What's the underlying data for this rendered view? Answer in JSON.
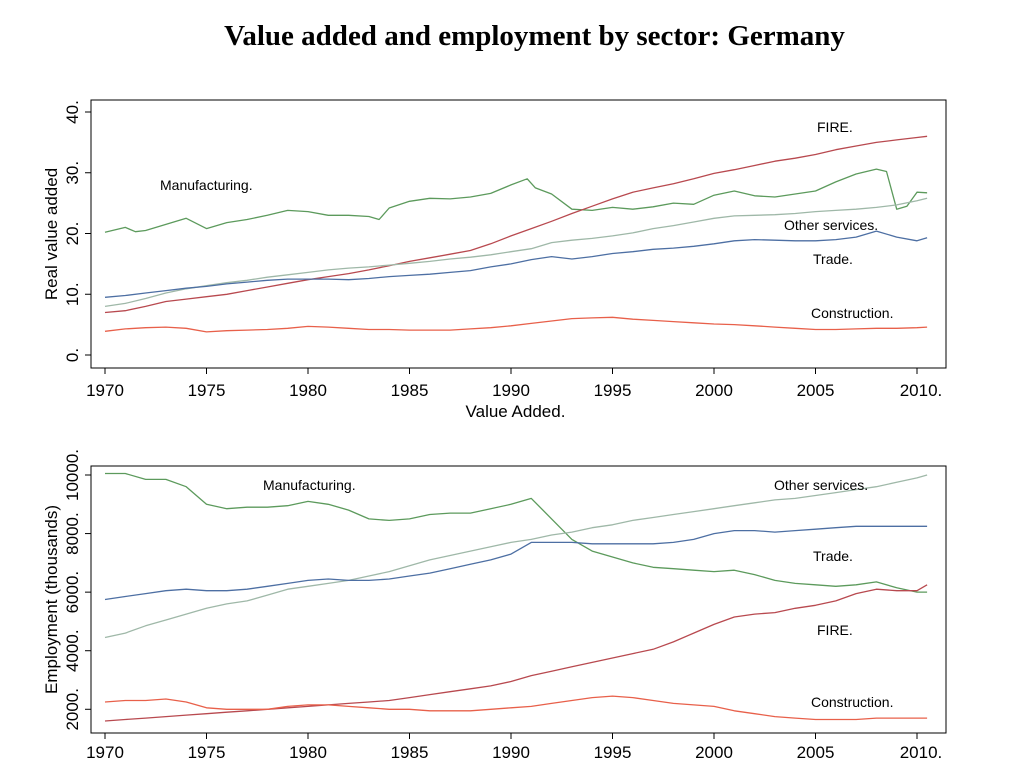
{
  "title": "Value added and employment by sector: Germany",
  "colors": {
    "Manufacturing": "#5c9a5c",
    "FIRE": "#b8494f",
    "Other services": "#9fb8a8",
    "Trade": "#4d6fa3",
    "Construction": "#e8604a"
  },
  "chart_data": [
    {
      "type": "line",
      "title": "",
      "xlabel": "Value Added.",
      "ylabel": "Real value added",
      "xlim": [
        1970,
        2010.5
      ],
      "ylim": [
        0,
        40
      ],
      "xticks": [
        1970,
        1975,
        1980,
        1985,
        1990,
        1995,
        2000,
        2005,
        2010
      ],
      "xtick_labels": [
        "1970",
        "1975",
        "1980",
        "1985",
        "1990",
        "1995",
        "2000",
        "2005",
        "2010."
      ],
      "yticks": [
        0,
        10,
        20,
        30,
        40
      ],
      "ytick_labels": [
        "0.",
        "10.",
        "20.",
        "30.",
        "40."
      ],
      "grid": false,
      "legend": "none (direct labels)",
      "series": [
        {
          "name": "Manufacturing",
          "label": "Manufacturing.",
          "x": [
            1970,
            1971,
            1971.5,
            1972,
            1973,
            1974,
            1975,
            1976,
            1977,
            1978,
            1979,
            1980,
            1981,
            1982,
            1983,
            1983.5,
            1984,
            1985,
            1986,
            1987,
            1988,
            1989,
            1990,
            1990.8,
            1991.2,
            1992,
            1993,
            1994,
            1995,
            1996,
            1997,
            1998,
            1999,
            2000,
            2001,
            2002,
            2003,
            2004,
            2005,
            2006,
            2007,
            2008,
            2008.5,
            2009,
            2009.5,
            2010,
            2010.5
          ],
          "y": [
            20.2,
            21,
            20.3,
            20.5,
            21.5,
            22.5,
            20.8,
            21.8,
            22.3,
            23,
            23.8,
            23.6,
            23,
            23,
            22.8,
            22.3,
            24.2,
            25.3,
            25.8,
            25.7,
            26,
            26.6,
            28,
            29,
            27.5,
            26.5,
            24,
            23.8,
            24.3,
            24,
            24.4,
            25,
            24.8,
            26.3,
            27,
            26.2,
            26,
            26.5,
            27,
            28.5,
            29.8,
            30.6,
            30.2,
            24,
            24.5,
            26.8,
            26.7
          ]
        },
        {
          "name": "FIRE",
          "label": "FIRE.",
          "x": [
            1970,
            1971,
            1972,
            1973,
            1974,
            1975,
            1976,
            1977,
            1978,
            1979,
            1980,
            1981,
            1982,
            1983,
            1984,
            1985,
            1986,
            1987,
            1988,
            1989,
            1990,
            1991,
            1992,
            1993,
            1994,
            1995,
            1996,
            1997,
            1998,
            1999,
            2000,
            2001,
            2002,
            2003,
            2004,
            2005,
            2006,
            2007,
            2008,
            2009,
            2010,
            2010.5
          ],
          "y": [
            7,
            7.3,
            8,
            8.8,
            9.2,
            9.6,
            10,
            10.6,
            11.2,
            11.8,
            12.4,
            12.9,
            13.4,
            14,
            14.7,
            15.4,
            16,
            16.6,
            17.2,
            18.3,
            19.6,
            20.8,
            22,
            23.3,
            24.5,
            25.7,
            26.8,
            27.5,
            28.2,
            29,
            29.9,
            30.5,
            31.2,
            31.9,
            32.4,
            33,
            33.8,
            34.4,
            35,
            35.4,
            35.8,
            36
          ]
        },
        {
          "name": "Other services",
          "label": "Other services.",
          "x": [
            1970,
            1971,
            1972,
            1973,
            1974,
            1975,
            1976,
            1977,
            1978,
            1979,
            1980,
            1981,
            1982,
            1983,
            1984,
            1985,
            1986,
            1987,
            1988,
            1989,
            1990,
            1991,
            1992,
            1993,
            1994,
            1995,
            1996,
            1997,
            1998,
            1999,
            2000,
            2001,
            2002,
            2003,
            2004,
            2005,
            2006,
            2007,
            2008,
            2009,
            2010,
            2010.5
          ],
          "y": [
            8,
            8.5,
            9.3,
            10.2,
            10.9,
            11.4,
            11.9,
            12.3,
            12.8,
            13.2,
            13.6,
            14,
            14.3,
            14.5,
            14.8,
            15.1,
            15.4,
            15.8,
            16.1,
            16.5,
            17,
            17.5,
            18.5,
            18.9,
            19.2,
            19.6,
            20.1,
            20.8,
            21.3,
            21.9,
            22.5,
            22.9,
            23,
            23.1,
            23.3,
            23.6,
            23.8,
            24,
            24.3,
            24.7,
            25.4,
            25.8
          ]
        },
        {
          "name": "Trade",
          "label": "Trade.",
          "x": [
            1970,
            1971,
            1972,
            1973,
            1974,
            1975,
            1976,
            1977,
            1978,
            1979,
            1980,
            1981,
            1982,
            1983,
            1984,
            1985,
            1986,
            1987,
            1988,
            1989,
            1990,
            1991,
            1992,
            1993,
            1994,
            1995,
            1996,
            1997,
            1998,
            1999,
            2000,
            2001,
            2002,
            2003,
            2004,
            2005,
            2006,
            2007,
            2008,
            2009,
            2010,
            2010.5
          ],
          "y": [
            9.5,
            9.8,
            10.2,
            10.6,
            11,
            11.3,
            11.7,
            12,
            12.3,
            12.5,
            12.5,
            12.5,
            12.4,
            12.6,
            12.9,
            13.1,
            13.3,
            13.6,
            13.9,
            14.5,
            15,
            15.7,
            16.2,
            15.8,
            16.2,
            16.7,
            17,
            17.4,
            17.6,
            17.9,
            18.3,
            18.8,
            19,
            18.9,
            18.8,
            18.8,
            19,
            19.4,
            20.4,
            19.4,
            18.8,
            19.3
          ]
        },
        {
          "name": "Construction",
          "label": "Construction.",
          "x": [
            1970,
            1971,
            1972,
            1973,
            1974,
            1975,
            1976,
            1977,
            1978,
            1979,
            1980,
            1981,
            1982,
            1983,
            1984,
            1985,
            1986,
            1987,
            1988,
            1989,
            1990,
            1991,
            1992,
            1993,
            1994,
            1995,
            1996,
            1997,
            1998,
            1999,
            2000,
            2001,
            2002,
            2003,
            2004,
            2005,
            2006,
            2007,
            2008,
            2009,
            2010,
            2010.5
          ],
          "y": [
            3.9,
            4.3,
            4.5,
            4.6,
            4.4,
            3.8,
            4,
            4.1,
            4.2,
            4.4,
            4.7,
            4.6,
            4.4,
            4.2,
            4.2,
            4.1,
            4.1,
            4.1,
            4.3,
            4.5,
            4.8,
            5.2,
            5.6,
            6,
            6.1,
            6.2,
            5.9,
            5.7,
            5.5,
            5.3,
            5.1,
            5,
            4.8,
            4.6,
            4.4,
            4.2,
            4.2,
            4.3,
            4.4,
            4.4,
            4.5,
            4.6
          ]
        }
      ]
    },
    {
      "type": "line",
      "title": "",
      "xlabel": "",
      "ylabel": "Employment (thousands)",
      "xlim": [
        1970,
        2010.5
      ],
      "ylim": [
        1600,
        10300
      ],
      "xticks": [
        1970,
        1975,
        1980,
        1985,
        1990,
        1995,
        2000,
        2005,
        2010
      ],
      "xtick_labels": [
        "1970",
        "1975",
        "1980",
        "1985",
        "1990",
        "1995",
        "2000",
        "2005",
        "2010."
      ],
      "yticks": [
        2000,
        4000,
        6000,
        8000,
        10000
      ],
      "ytick_labels": [
        "2000.",
        "4000.",
        "6000.",
        "8000.",
        "10000."
      ],
      "grid": false,
      "legend": "none (direct labels)",
      "series": [
        {
          "name": "Manufacturing",
          "label": "Manufacturing.",
          "x": [
            1970,
            1971,
            1972,
            1973,
            1974,
            1975,
            1976,
            1977,
            1978,
            1979,
            1980,
            1981,
            1982,
            1983,
            1984,
            1985,
            1986,
            1987,
            1988,
            1989,
            1990,
            1991,
            1992,
            1993,
            1994,
            1995,
            1996,
            1997,
            1998,
            1999,
            2000,
            2001,
            2002,
            2003,
            2004,
            2005,
            2006,
            2007,
            2008,
            2009,
            2010,
            2010.5
          ],
          "y": [
            10050,
            10050,
            9850,
            9850,
            9600,
            9000,
            8850,
            8900,
            8900,
            8950,
            9100,
            9000,
            8800,
            8500,
            8450,
            8500,
            8650,
            8700,
            8700,
            8850,
            9000,
            9200,
            8500,
            7800,
            7400,
            7200,
            7000,
            6850,
            6800,
            6750,
            6700,
            6750,
            6600,
            6400,
            6300,
            6250,
            6200,
            6250,
            6350,
            6150,
            6000,
            6000
          ]
        },
        {
          "name": "Other services",
          "label": "Other services.",
          "x": [
            1970,
            1971,
            1972,
            1973,
            1974,
            1975,
            1976,
            1977,
            1978,
            1979,
            1980,
            1981,
            1982,
            1983,
            1984,
            1985,
            1986,
            1987,
            1988,
            1989,
            1990,
            1991,
            1992,
            1993,
            1994,
            1995,
            1996,
            1997,
            1998,
            1999,
            2000,
            2001,
            2002,
            2003,
            2004,
            2005,
            2006,
            2007,
            2008,
            2009,
            2010,
            2010.5
          ],
          "y": [
            4450,
            4600,
            4850,
            5050,
            5250,
            5450,
            5600,
            5700,
            5900,
            6100,
            6200,
            6300,
            6400,
            6550,
            6700,
            6900,
            7100,
            7250,
            7400,
            7550,
            7700,
            7800,
            7950,
            8050,
            8200,
            8300,
            8450,
            8550,
            8650,
            8750,
            8850,
            8950,
            9050,
            9150,
            9200,
            9300,
            9400,
            9500,
            9600,
            9750,
            9900,
            10000
          ]
        },
        {
          "name": "Trade",
          "label": "Trade.",
          "x": [
            1970,
            1971,
            1972,
            1973,
            1974,
            1975,
            1976,
            1977,
            1978,
            1979,
            1980,
            1981,
            1982,
            1983,
            1984,
            1985,
            1986,
            1987,
            1988,
            1989,
            1990,
            1991,
            1992,
            1993,
            1994,
            1995,
            1996,
            1997,
            1998,
            1999,
            2000,
            2001,
            2002,
            2003,
            2004,
            2005,
            2006,
            2007,
            2008,
            2009,
            2010,
            2010.5
          ],
          "y": [
            5750,
            5850,
            5950,
            6050,
            6100,
            6050,
            6050,
            6100,
            6200,
            6300,
            6400,
            6450,
            6400,
            6400,
            6450,
            6550,
            6650,
            6800,
            6950,
            7100,
            7300,
            7700,
            7700,
            7700,
            7650,
            7650,
            7650,
            7650,
            7700,
            7800,
            8000,
            8100,
            8100,
            8050,
            8100,
            8150,
            8200,
            8250,
            8250,
            8250,
            8250,
            8250
          ]
        },
        {
          "name": "FIRE",
          "label": "FIRE.",
          "x": [
            1970,
            1971,
            1972,
            1973,
            1974,
            1975,
            1976,
            1977,
            1978,
            1979,
            1980,
            1981,
            1982,
            1983,
            1984,
            1985,
            1986,
            1987,
            1988,
            1989,
            1990,
            1991,
            1992,
            1993,
            1994,
            1995,
            1996,
            1997,
            1998,
            1999,
            2000,
            2001,
            2002,
            2003,
            2004,
            2005,
            2006,
            2007,
            2008,
            2009,
            2010,
            2010.5
          ],
          "y": [
            1600,
            1650,
            1700,
            1750,
            1800,
            1850,
            1900,
            1950,
            2000,
            2050,
            2100,
            2150,
            2200,
            2250,
            2300,
            2400,
            2500,
            2600,
            2700,
            2800,
            2950,
            3150,
            3300,
            3450,
            3600,
            3750,
            3900,
            4050,
            4300,
            4600,
            4900,
            5150,
            5250,
            5300,
            5450,
            5550,
            5700,
            5950,
            6100,
            6050,
            6050,
            6250
          ]
        },
        {
          "name": "Construction",
          "label": "Construction.",
          "x": [
            1970,
            1971,
            1972,
            1973,
            1974,
            1975,
            1976,
            1977,
            1978,
            1979,
            1980,
            1981,
            1982,
            1983,
            1984,
            1985,
            1986,
            1987,
            1988,
            1989,
            1990,
            1991,
            1992,
            1993,
            1994,
            1995,
            1996,
            1997,
            1998,
            1999,
            2000,
            2001,
            2002,
            2003,
            2004,
            2005,
            2006,
            2007,
            2008,
            2009,
            2010,
            2010.5
          ],
          "y": [
            2250,
            2300,
            2300,
            2350,
            2250,
            2050,
            2000,
            2000,
            2000,
            2100,
            2150,
            2150,
            2100,
            2050,
            2000,
            2000,
            1950,
            1950,
            1950,
            2000,
            2050,
            2100,
            2200,
            2300,
            2400,
            2450,
            2400,
            2300,
            2200,
            2150,
            2100,
            1950,
            1850,
            1750,
            1700,
            1650,
            1650,
            1650,
            1700,
            1700,
            1700,
            1700
          ]
        }
      ]
    }
  ]
}
